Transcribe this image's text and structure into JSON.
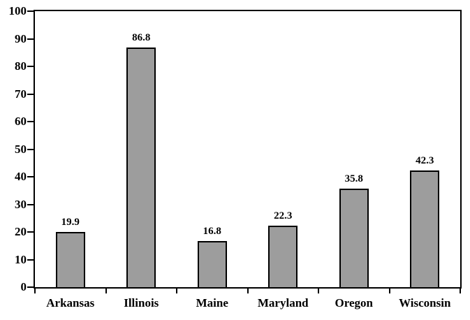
{
  "figure": {
    "background": "#FFFFFF"
  },
  "chart_data": {
    "type": "bar",
    "title": "",
    "xlabel": "",
    "ylabel": "",
    "categories": [
      "Arkansas",
      "Illinois",
      "Maine",
      "Maryland",
      "Oregon",
      "Wisconsin"
    ],
    "values": [
      19.9,
      86.8,
      16.8,
      22.3,
      35.8,
      42.3
    ],
    "data_labels": [
      "19.9",
      "86.8",
      "16.8",
      "22.3",
      "35.8",
      "42.3"
    ],
    "ylim": [
      0,
      100
    ],
    "yticks": [
      0,
      10,
      20,
      30,
      40,
      50,
      60,
      70,
      80,
      90,
      100
    ],
    "ytick_labels": [
      "0",
      "10",
      "20",
      "30",
      "40",
      "50",
      "60",
      "70",
      "80",
      "90",
      "100"
    ],
    "grid": false,
    "legend": false,
    "data_label_position": "above-bar",
    "bar_color": "#9D9D9D",
    "bar_border_color": "#000000",
    "axis_color": "#000000",
    "text_color": "#000000"
  }
}
